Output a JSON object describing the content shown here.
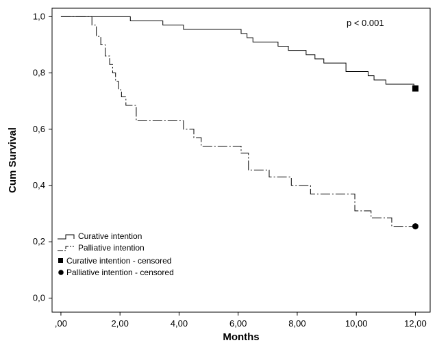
{
  "chart_data": {
    "type": "line",
    "subtype": "kaplan-meier",
    "title": "",
    "xlabel": "Months",
    "ylabel": "Cum Survival",
    "xlim": [
      -0.3,
      12.5
    ],
    "ylim": [
      -0.05,
      1.03
    ],
    "x_ticks": [
      0,
      2,
      4,
      6,
      8,
      10,
      12
    ],
    "x_tick_labels": [
      ",00",
      "2,00",
      "4,00",
      "6,00",
      "8,00",
      "10,00",
      "12,00"
    ],
    "y_ticks": [
      0,
      0.2,
      0.4,
      0.6,
      0.8,
      1.0
    ],
    "y_tick_labels": [
      "0,0",
      "0,2",
      "0,4",
      "0,6",
      "0,8",
      "1,0"
    ],
    "annotation": "p < 0.001",
    "grid": false,
    "legend_position": "bottom-left",
    "series": [
      {
        "name": "Curative intention",
        "line_style": "solid",
        "color": "#000000",
        "steps": [
          [
            0,
            1.0
          ],
          [
            2.35,
            0.985
          ],
          [
            3.45,
            0.97
          ],
          [
            4.15,
            0.955
          ],
          [
            6.1,
            0.94
          ],
          [
            6.3,
            0.925
          ],
          [
            6.5,
            0.91
          ],
          [
            7.35,
            0.895
          ],
          [
            7.7,
            0.88
          ],
          [
            8.3,
            0.865
          ],
          [
            8.6,
            0.85
          ],
          [
            8.9,
            0.835
          ],
          [
            9.65,
            0.805
          ],
          [
            10.4,
            0.79
          ],
          [
            10.6,
            0.775
          ],
          [
            11.0,
            0.76
          ],
          [
            11.95,
            0.745
          ],
          [
            12.0,
            0.745
          ]
        ],
        "censored": [
          [
            12.0,
            0.745
          ]
        ]
      },
      {
        "name": "Palliative intention",
        "line_style": "dash-dot",
        "color": "#000000",
        "steps": [
          [
            0,
            1.0
          ],
          [
            1.05,
            0.97
          ],
          [
            1.2,
            0.93
          ],
          [
            1.35,
            0.9
          ],
          [
            1.5,
            0.86
          ],
          [
            1.65,
            0.83
          ],
          [
            1.75,
            0.8
          ],
          [
            1.85,
            0.77
          ],
          [
            1.95,
            0.74
          ],
          [
            2.05,
            0.715
          ],
          [
            2.2,
            0.685
          ],
          [
            2.55,
            0.63
          ],
          [
            4.15,
            0.6
          ],
          [
            4.5,
            0.57
          ],
          [
            4.75,
            0.54
          ],
          [
            6.1,
            0.515
          ],
          [
            6.35,
            0.455
          ],
          [
            7.05,
            0.43
          ],
          [
            7.8,
            0.4
          ],
          [
            8.45,
            0.37
          ],
          [
            9.95,
            0.31
          ],
          [
            10.5,
            0.285
          ],
          [
            11.2,
            0.255
          ],
          [
            12.0,
            0.255
          ]
        ],
        "censored": [
          [
            12.0,
            0.255
          ]
        ]
      }
    ],
    "legend": [
      {
        "label": "Curative intention",
        "symbol": "solid-step"
      },
      {
        "label": "Palliative intention",
        "symbol": "dashdot-step"
      },
      {
        "label": "Curative intention - censored",
        "symbol": "square"
      },
      {
        "label": "Palliative intention - censored",
        "symbol": "circle"
      }
    ]
  }
}
